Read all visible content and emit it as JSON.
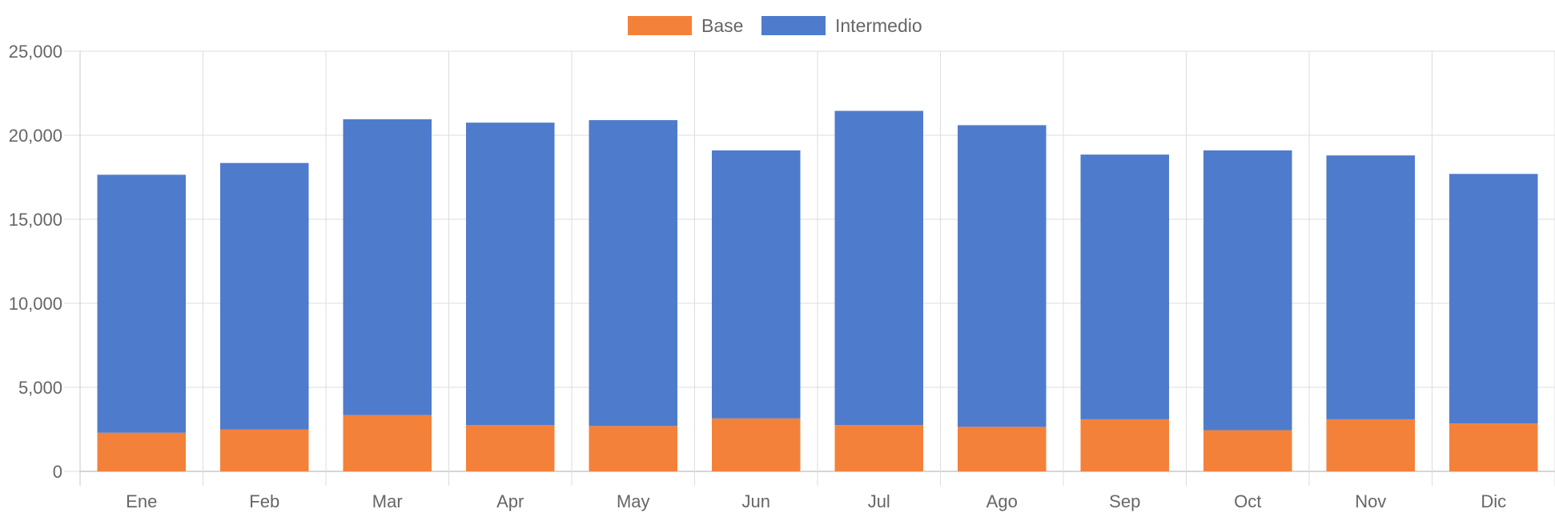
{
  "chart_data": {
    "type": "bar",
    "stacked": true,
    "categories": [
      "Ene",
      "Feb",
      "Mar",
      "Apr",
      "May",
      "Jun",
      "Jul",
      "Ago",
      "Sep",
      "Oct",
      "Nov",
      "Dic"
    ],
    "series": [
      {
        "name": "Base",
        "color": "#f4813a",
        "values": [
          2300,
          2500,
          3350,
          2750,
          2700,
          3150,
          2750,
          2650,
          3100,
          2450,
          3100,
          2850
        ]
      },
      {
        "name": "Intermedio",
        "color": "#4f7bcc",
        "values": [
          15350,
          15850,
          17600,
          18000,
          18200,
          15950,
          18700,
          17950,
          15750,
          16650,
          15700,
          14850
        ]
      }
    ],
    "ylim": [
      0,
      25000
    ],
    "yticks": [
      "0",
      "5,000",
      "10,000",
      "15,000",
      "20,000",
      "25,000"
    ],
    "grid": true,
    "legend_position": "top-center"
  }
}
